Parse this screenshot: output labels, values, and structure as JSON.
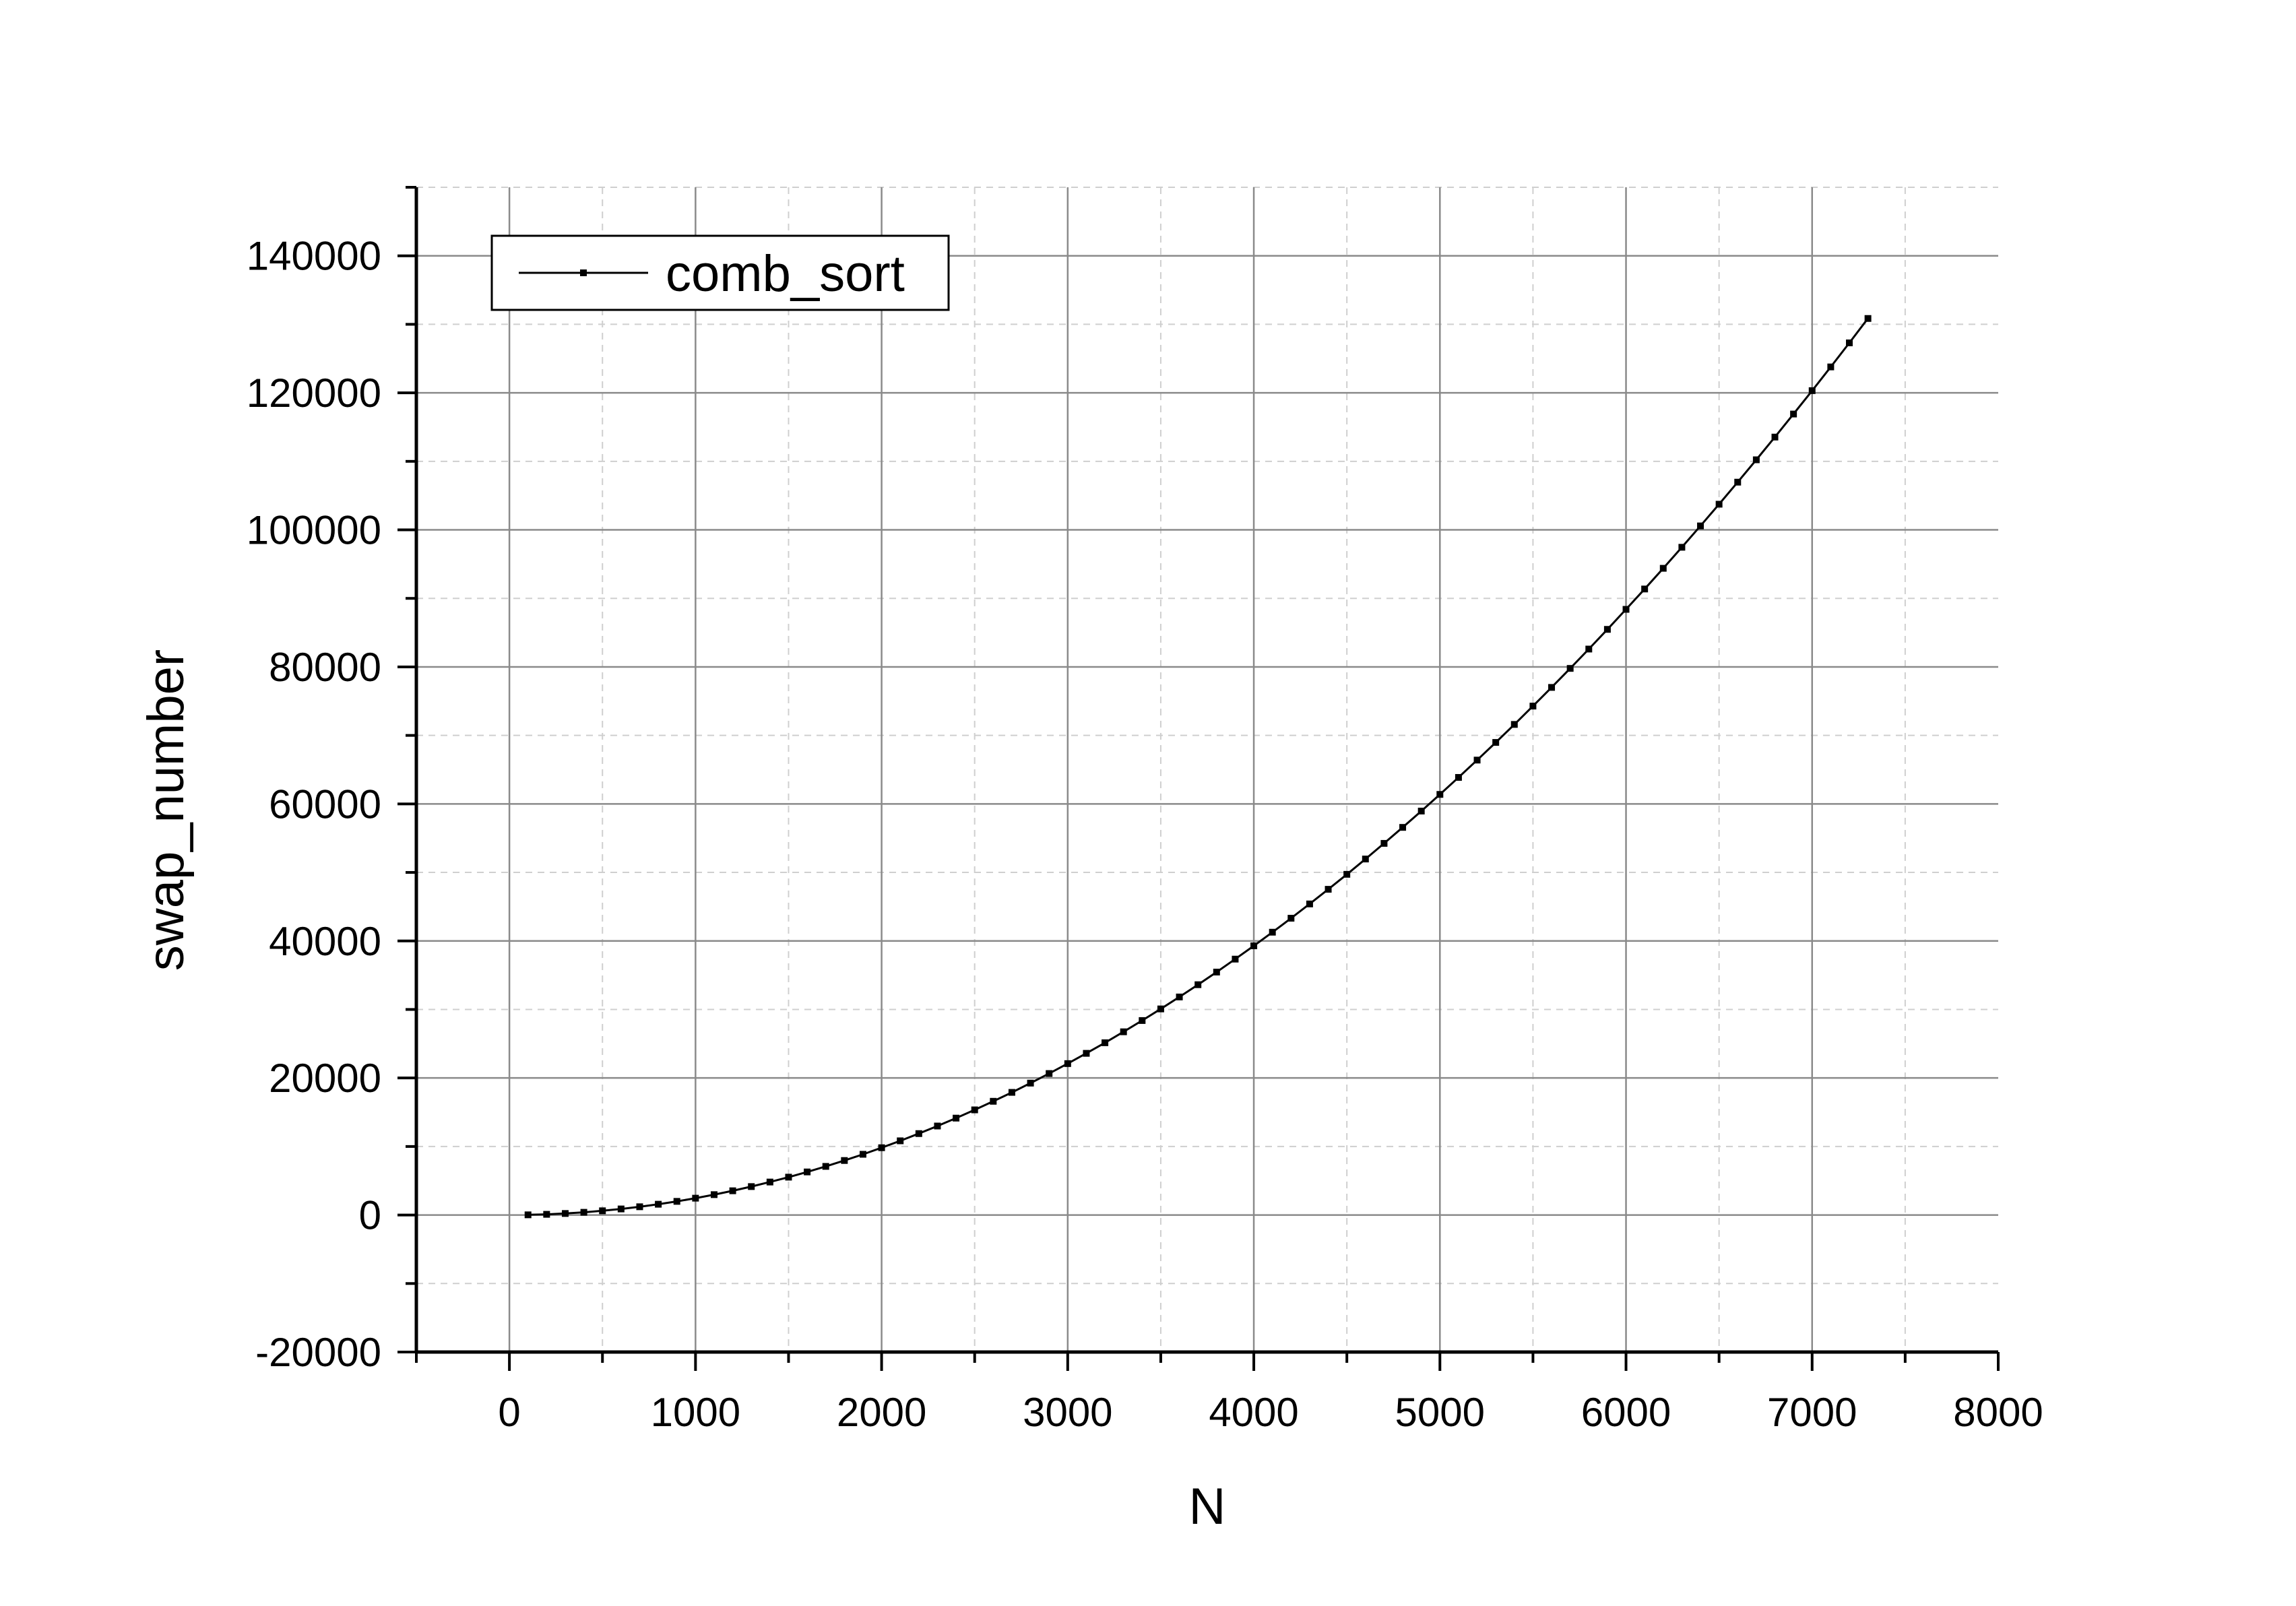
{
  "chart_data": {
    "type": "line",
    "xlabel": "N",
    "ylabel": "swap_number",
    "xlim": [
      -500,
      8000
    ],
    "ylim": [
      -20000,
      150000
    ],
    "x_ticks": [
      0,
      1000,
      2000,
      3000,
      4000,
      5000,
      6000,
      7000,
      8000
    ],
    "x_tick_labels": [
      "0",
      "1000",
      "2000",
      "3000",
      "4000",
      "5000",
      "6000",
      "7000",
      "8000"
    ],
    "y_ticks": [
      -20000,
      0,
      20000,
      40000,
      60000,
      80000,
      100000,
      120000,
      140000
    ],
    "y_tick_labels": [
      "-20000",
      "0",
      "20000",
      "40000",
      "60000",
      "80000",
      "100000",
      "120000",
      "140000"
    ],
    "grid": true,
    "legend_position": "top-left",
    "series": [
      {
        "name": "comb_sort",
        "color": "#000000",
        "marker": "square",
        "x": [
          100,
          200,
          300,
          400,
          500,
          600,
          700,
          800,
          900,
          1000,
          1100,
          1200,
          1300,
          1400,
          1500,
          1600,
          1700,
          1800,
          1900,
          2000,
          2100,
          2200,
          2300,
          2400,
          2500,
          2600,
          2700,
          2800,
          2900,
          3000,
          3100,
          3200,
          3300,
          3400,
          3500,
          3600,
          3700,
          3800,
          3900,
          4000,
          4100,
          4200,
          4300,
          4400,
          4500,
          4600,
          4700,
          4800,
          4900,
          5000,
          5100,
          5200,
          5300,
          5400,
          5500,
          5600,
          5700,
          5800,
          5900,
          6000,
          6100,
          6200,
          6300,
          6400,
          6500,
          6600,
          6700,
          6800,
          6900,
          7000,
          7100,
          7200,
          7300
        ],
        "values": [
          25,
          99,
          221,
          393,
          614,
          884,
          1203,
          1571,
          1989,
          2455,
          2971,
          3535,
          4149,
          4812,
          5524,
          6285,
          7095,
          7954,
          8862,
          9820,
          10827,
          11882,
          12987,
          14141,
          15344,
          16597,
          17898,
          19249,
          20649,
          22097,
          23595,
          25142,
          26739,
          28384,
          30078,
          31822,
          33614,
          35456,
          37347,
          39287,
          41276,
          43314,
          45401,
          47537,
          49723,
          51957,
          54241,
          56574,
          58956,
          61387,
          63867,
          66396,
          68974,
          71602,
          74278,
          77004,
          79779,
          82602,
          85475,
          88397,
          91368,
          94389,
          97458,
          100576,
          103744,
          106960,
          110226,
          113541,
          116905,
          120318,
          123780,
          127291,
          130852
        ]
      }
    ]
  }
}
